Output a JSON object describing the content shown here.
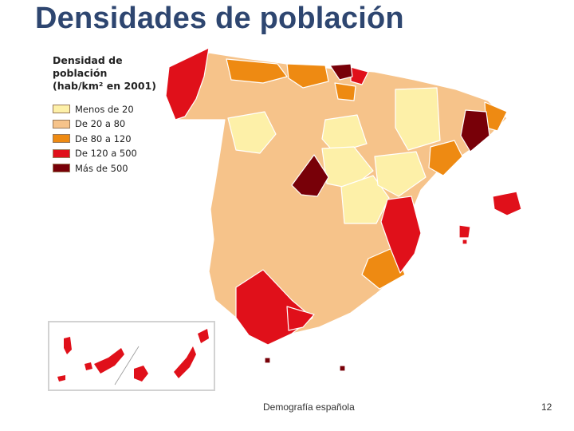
{
  "slide": {
    "title": "Densidades de población",
    "footer": "Demografía española",
    "page_number": "12"
  },
  "legend": {
    "title_line1": "Densidad de población",
    "title_line2": "(hab/km² en 2001)",
    "items": [
      {
        "label": "Menos de 20",
        "color": "#fdf0a8"
      },
      {
        "label": "De 20 a 80",
        "color": "#f6c38a"
      },
      {
        "label": "De 80 a 120",
        "color": "#ee8a12"
      },
      {
        "label": "De 120 a 500",
        "color": "#e0101a"
      },
      {
        "label": "Más de 500",
        "color": "#780008"
      }
    ]
  },
  "colors": {
    "title": "#2e4670",
    "menos_20": "#fdf0a8",
    "de_20_80": "#f6c38a",
    "de_80_120": "#ee8a12",
    "de_120_500": "#e0101a",
    "mas_500": "#780008"
  }
}
